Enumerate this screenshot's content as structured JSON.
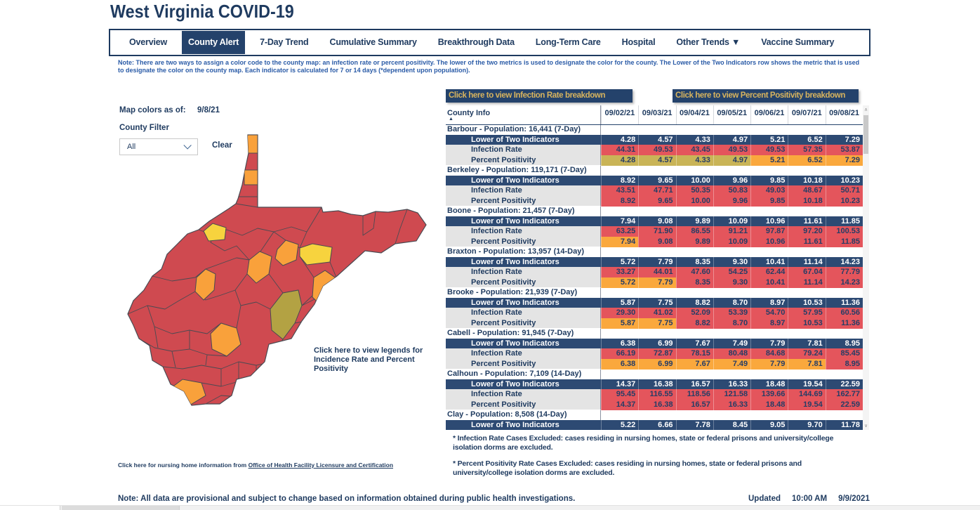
{
  "title": "West Virginia COVID-19",
  "tabs": {
    "items": [
      {
        "label": "Overview",
        "active": false
      },
      {
        "label": "County Alert",
        "active": true
      },
      {
        "label": "7-Day Trend",
        "active": false
      },
      {
        "label": "Cumulative Summary",
        "active": false
      },
      {
        "label": "Breakthrough Data",
        "active": false
      },
      {
        "label": "Long-Term Care",
        "active": false
      },
      {
        "label": "Hospital",
        "active": false
      },
      {
        "label": "Other Trends ▼",
        "active": false
      },
      {
        "label": "Vaccine Summary",
        "active": false
      }
    ]
  },
  "note": "Note: There are two ways to assign a color code to the county map: an infection rate or percent positivity. The lower of the two metrics is used to designate the color for the county. The Lower of the Two Indicators row shows the metric that is used to designate the color on the county map. Each indicator is calculated for 7 or 14 days (*dependent upon population).",
  "controls": {
    "map_colors_label": "Map colors as of:",
    "map_colors_date": "9/8/21",
    "county_filter_label": "County Filter",
    "filter_value": "All",
    "clear_label": "Clear"
  },
  "map": {
    "legend_link": "Click here to view legends for Incidence Rate and Percent Positivity",
    "colors": {
      "red": "#cf4a50",
      "orange": "#f9a13b",
      "yellow": "#f7d33e",
      "olive": "#b3a243",
      "border": "#4a4a52"
    },
    "patches": [
      "orange",
      "orange",
      "yellow",
      "orange",
      "yellow",
      "orange",
      "orange",
      "orange",
      "olive",
      "orange",
      "orange"
    ]
  },
  "buttons": {
    "infection": "Click here to view Infection Rate breakdown",
    "positivity": "Click here to view Percent Positivity breakdown"
  },
  "table": {
    "header": {
      "county_col": "County Info",
      "dates": [
        "09/02/21",
        "09/03/21",
        "09/04/21",
        "09/05/21",
        "09/06/21",
        "09/07/21",
        "09/08/21"
      ]
    },
    "row_labels": {
      "lower": "Lower of Two Indicators",
      "infection": "Infection Rate",
      "positivity": "Percent Positivity"
    },
    "cell_colors": {
      "red": "#e4555c",
      "orange": "#faa83d",
      "olive": "#c9b457",
      "navy": "#2d4a73"
    },
    "counties": [
      {
        "name": "Barbour - Population: 16,441 (7-Day)",
        "lower": [
          "4.28",
          "4.57",
          "4.33",
          "4.97",
          "5.21",
          "6.52",
          "7.29"
        ],
        "infection": {
          "values": [
            "44.31",
            "49.53",
            "43.45",
            "49.53",
            "49.53",
            "57.35",
            "53.87"
          ],
          "colors": [
            "red",
            "red",
            "red",
            "red",
            "red",
            "red",
            "red"
          ]
        },
        "positivity": {
          "values": [
            "4.28",
            "4.57",
            "4.33",
            "4.97",
            "5.21",
            "6.52",
            "7.29"
          ],
          "colors": [
            "olive",
            "olive",
            "olive",
            "olive",
            "orange",
            "orange",
            "orange"
          ]
        }
      },
      {
        "name": "Berkeley - Population: 119,171 (7-Day)",
        "lower": [
          "8.92",
          "9.65",
          "10.00",
          "9.96",
          "9.85",
          "10.18",
          "10.23"
        ],
        "infection": {
          "values": [
            "43.51",
            "47.71",
            "50.35",
            "50.83",
            "49.03",
            "48.67",
            "50.71"
          ],
          "colors": [
            "red",
            "red",
            "red",
            "red",
            "red",
            "red",
            "red"
          ]
        },
        "positivity": {
          "values": [
            "8.92",
            "9.65",
            "10.00",
            "9.96",
            "9.85",
            "10.18",
            "10.23"
          ],
          "colors": [
            "red",
            "red",
            "red",
            "red",
            "red",
            "red",
            "red"
          ]
        }
      },
      {
        "name": "Boone - Population: 21,457 (7-Day)",
        "lower": [
          "7.94",
          "9.08",
          "9.89",
          "10.09",
          "10.96",
          "11.61",
          "11.85"
        ],
        "infection": {
          "values": [
            "63.25",
            "71.90",
            "86.55",
            "91.21",
            "97.87",
            "97.20",
            "100.53"
          ],
          "colors": [
            "red",
            "red",
            "red",
            "red",
            "red",
            "red",
            "red"
          ]
        },
        "positivity": {
          "values": [
            "7.94",
            "9.08",
            "9.89",
            "10.09",
            "10.96",
            "11.61",
            "11.85"
          ],
          "colors": [
            "orange",
            "red",
            "red",
            "red",
            "red",
            "red",
            "red"
          ]
        }
      },
      {
        "name": "Braxton - Population: 13,957 (14-Day)",
        "lower": [
          "5.72",
          "7.79",
          "8.35",
          "9.30",
          "10.41",
          "11.14",
          "14.23"
        ],
        "infection": {
          "values": [
            "33.27",
            "44.01",
            "47.60",
            "54.25",
            "62.44",
            "67.04",
            "77.79"
          ],
          "colors": [
            "red",
            "red",
            "red",
            "red",
            "red",
            "red",
            "red"
          ]
        },
        "positivity": {
          "values": [
            "5.72",
            "7.79",
            "8.35",
            "9.30",
            "10.41",
            "11.14",
            "14.23"
          ],
          "colors": [
            "orange",
            "orange",
            "red",
            "red",
            "red",
            "red",
            "red"
          ]
        }
      },
      {
        "name": "Brooke - Population: 21,939 (7-Day)",
        "lower": [
          "5.87",
          "7.75",
          "8.82",
          "8.70",
          "8.97",
          "10.53",
          "11.36"
        ],
        "infection": {
          "values": [
            "29.30",
            "41.02",
            "52.09",
            "53.39",
            "54.70",
            "57.95",
            "60.56"
          ],
          "colors": [
            "red",
            "red",
            "red",
            "red",
            "red",
            "red",
            "red"
          ]
        },
        "positivity": {
          "values": [
            "5.87",
            "7.75",
            "8.82",
            "8.70",
            "8.97",
            "10.53",
            "11.36"
          ],
          "colors": [
            "orange",
            "orange",
            "red",
            "red",
            "red",
            "red",
            "red"
          ]
        }
      },
      {
        "name": "Cabell - Population: 91,945 (7-Day)",
        "lower": [
          "6.38",
          "6.99",
          "7.67",
          "7.49",
          "7.79",
          "7.81",
          "8.95"
        ],
        "infection": {
          "values": [
            "66.19",
            "72.87",
            "78.15",
            "80.48",
            "84.68",
            "79.24",
            "85.45"
          ],
          "colors": [
            "red",
            "red",
            "red",
            "red",
            "red",
            "red",
            "red"
          ]
        },
        "positivity": {
          "values": [
            "6.38",
            "6.99",
            "7.67",
            "7.49",
            "7.79",
            "7.81",
            "8.95"
          ],
          "colors": [
            "orange",
            "orange",
            "orange",
            "orange",
            "orange",
            "orange",
            "red"
          ]
        }
      },
      {
        "name": "Calhoun - Population: 7,109 (14-Day)",
        "lower": [
          "14.37",
          "16.38",
          "16.57",
          "16.33",
          "18.48",
          "19.54",
          "22.59"
        ],
        "infection": {
          "values": [
            "95.45",
            "116.55",
            "118.56",
            "121.58",
            "139.66",
            "144.69",
            "162.77"
          ],
          "colors": [
            "red",
            "red",
            "red",
            "red",
            "red",
            "red",
            "red"
          ]
        },
        "positivity": {
          "values": [
            "14.37",
            "16.38",
            "16.57",
            "16.33",
            "18.48",
            "19.54",
            "22.59"
          ],
          "colors": [
            "red",
            "red",
            "red",
            "red",
            "red",
            "red",
            "red"
          ]
        }
      },
      {
        "name": "Clay - Population: 8,508 (14-Day)",
        "lower": [
          "5.22",
          "6.66",
          "7.78",
          "8.45",
          "9.05",
          "9.70",
          "11.78"
        ]
      }
    ]
  },
  "footnotes": [
    "* Infection Rate Cases Excluded: cases residing in nursing homes, state or federal prisons and university/college isolation dorms are excluded.",
    "* Percent Positivity Rate Cases Excluded: cases residing in nursing homes, state or federal prisons and university/college isolation dorms are excluded."
  ],
  "links": {
    "nursing_prefix": "Click here for nursing home information from ",
    "nursing_link": "Office of Health Facility Licensure and Certification"
  },
  "footer": {
    "note": "Note: All data are provisional and subject to change based on information obtained during public health investigations.",
    "updated_label": "Updated",
    "updated_time": "10:00 AM",
    "updated_date": "9/9/2021"
  }
}
